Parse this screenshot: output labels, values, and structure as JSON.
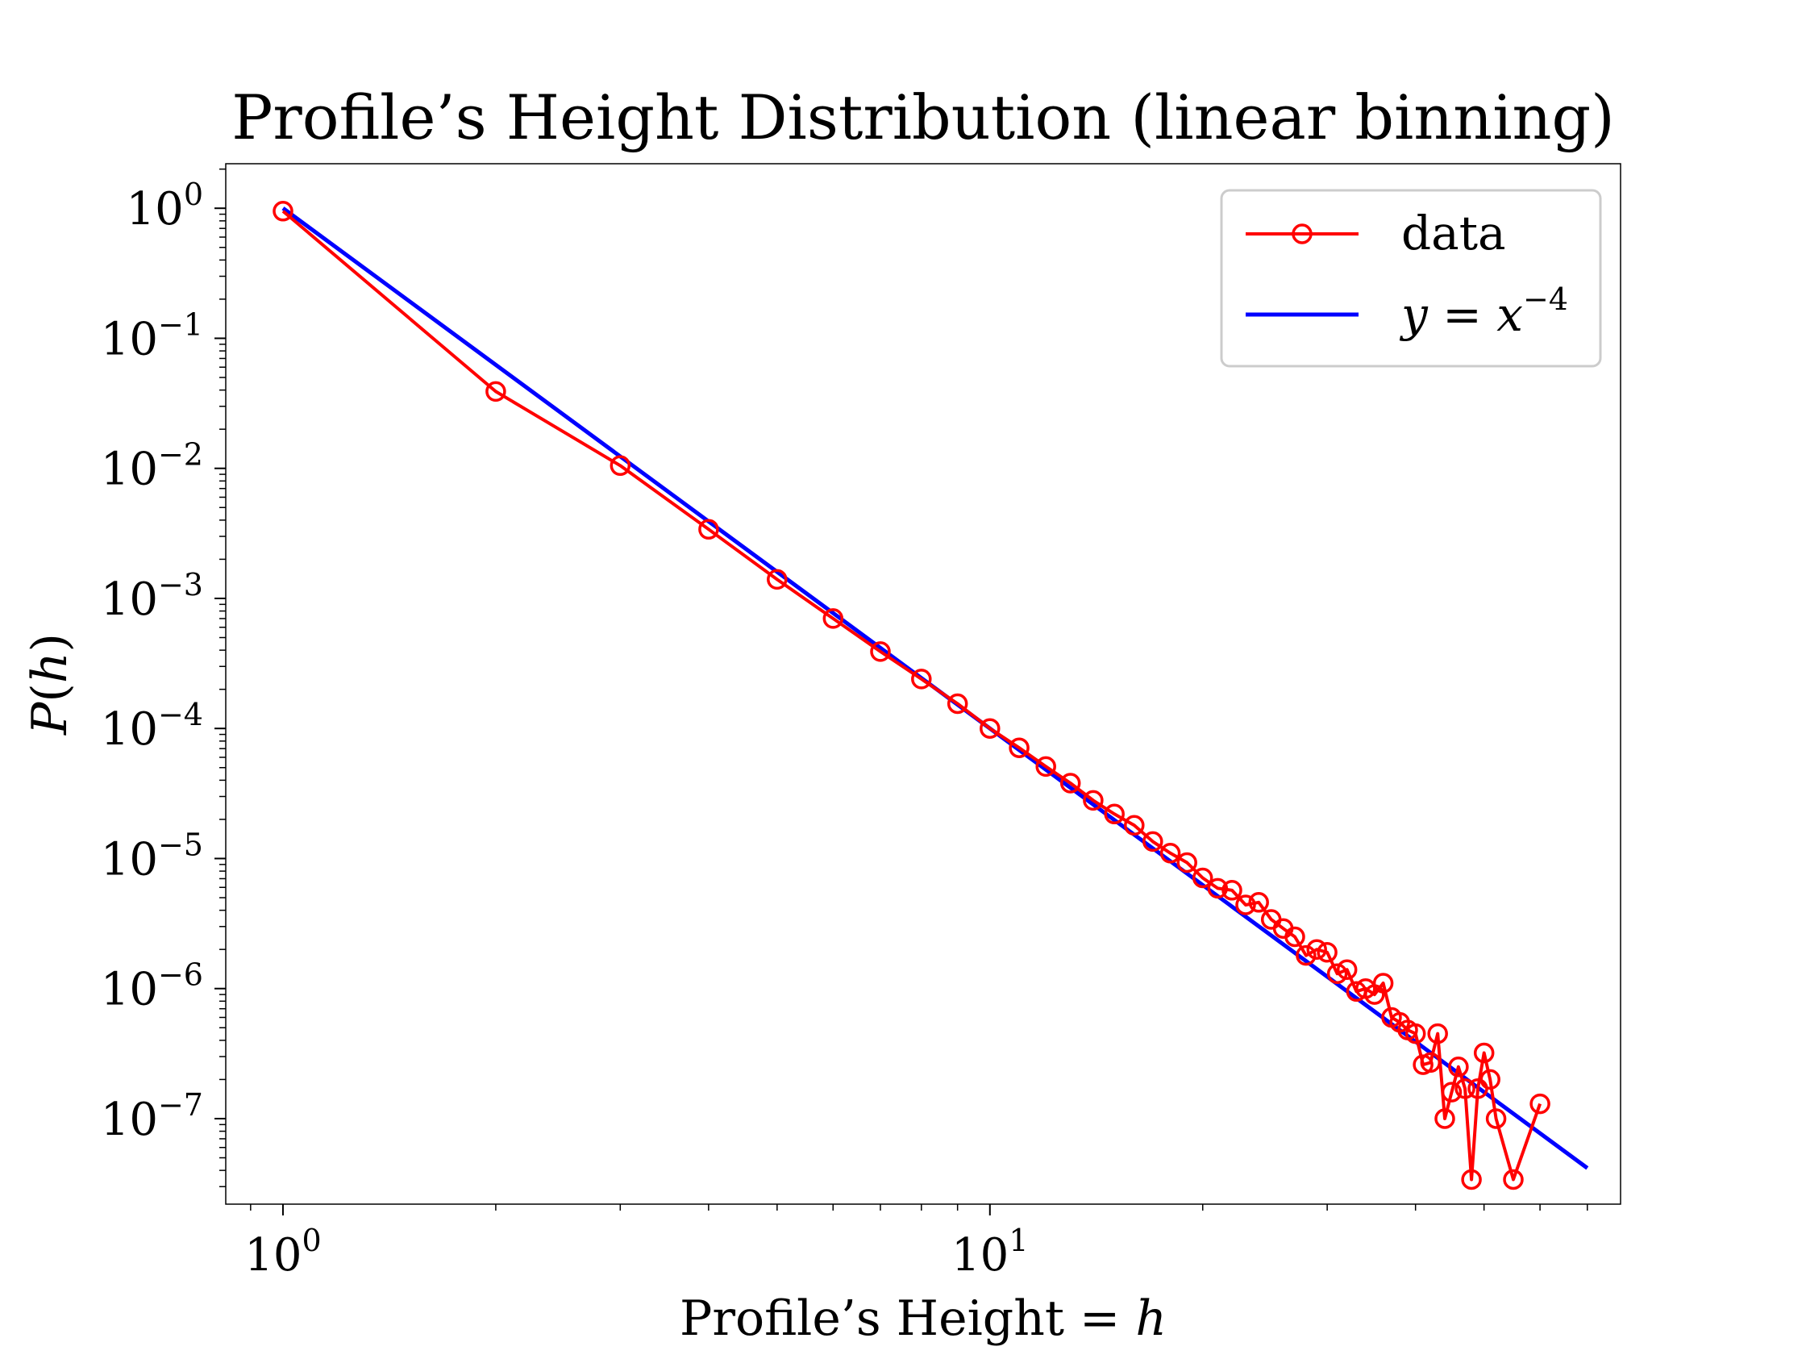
{
  "chart_data": {
    "type": "line",
    "title": "Profile’s Height Distribution (linear binning)",
    "xlabel": {
      "prefix": "Profile’s Height = ",
      "variable": "h"
    },
    "ylabel": {
      "func": "P",
      "variable": "h"
    },
    "x_scale": "log",
    "y_scale": "log",
    "xlim": [
      0.83,
      78
    ],
    "ylim": [
      2.2e-08,
      2.2
    ],
    "x_tick_labels": [
      {
        "value": 1,
        "base": "10",
        "exp": "0"
      },
      {
        "value": 10,
        "base": "10",
        "exp": "1"
      }
    ],
    "y_tick_labels": [
      {
        "value": 1,
        "base": "10",
        "exp": "0"
      },
      {
        "value": 0.1,
        "base": "10",
        "exp": "−1"
      },
      {
        "value": 0.01,
        "base": "10",
        "exp": "−2"
      },
      {
        "value": 0.001,
        "base": "10",
        "exp": "−3"
      },
      {
        "value": 0.0001,
        "base": "10",
        "exp": "−4"
      },
      {
        "value": 1e-05,
        "base": "10",
        "exp": "−5"
      },
      {
        "value": 1e-06,
        "base": "10",
        "exp": "−6"
      },
      {
        "value": 1e-07,
        "base": "10",
        "exp": "−7"
      }
    ],
    "grid": false,
    "legend_position": "top-right",
    "series": [
      {
        "name": "data",
        "color": "#ff0000",
        "marker": "open-circle",
        "x": [
          1,
          2,
          3,
          4,
          5,
          6,
          7,
          8,
          9,
          10,
          11,
          12,
          13,
          14,
          15,
          16,
          17,
          18,
          19,
          20,
          21,
          22,
          23,
          24,
          25,
          26,
          27,
          28,
          29,
          30,
          31,
          32,
          33,
          34,
          35,
          36,
          37,
          38,
          39,
          40,
          41,
          42,
          43,
          44,
          45,
          46,
          47,
          48,
          49,
          50,
          51,
          52,
          55,
          60
        ],
        "y": [
          0.95,
          0.039,
          0.0105,
          0.0034,
          0.0014,
          0.0007,
          0.00039,
          0.00024,
          0.000155,
          0.0001,
          7.1e-05,
          5.1e-05,
          3.8e-05,
          2.8e-05,
          2.2e-05,
          1.8e-05,
          1.35e-05,
          1.1e-05,
          9.3e-06,
          7.1e-06,
          5.9e-06,
          5.7e-06,
          4.4e-06,
          4.6e-06,
          3.4e-06,
          2.9e-06,
          2.5e-06,
          1.8e-06,
          2e-06,
          1.9e-06,
          1.3e-06,
          1.4e-06,
          9.5e-07,
          1e-06,
          9e-07,
          1.1e-06,
          6e-07,
          5.5e-07,
          4.8e-07,
          4.5e-07,
          2.6e-07,
          2.7e-07,
          4.5e-07,
          1e-07,
          1.6e-07,
          2.5e-07,
          1.7e-07,
          3.4e-08,
          1.7e-07,
          3.2e-07,
          2e-07,
          1e-07,
          3.4e-08,
          1.3e-07
        ]
      },
      {
        "name": "y = x^−4",
        "color": "#0000ff",
        "marker": "none",
        "x": [
          1,
          70
        ],
        "y": [
          1,
          4.165e-08
        ]
      }
    ],
    "legend": [
      {
        "label": "data",
        "color": "#ff0000",
        "marker": "open-circle"
      },
      {
        "label_parts": {
          "lhs": "y",
          "eq": " = ",
          "base": "x",
          "exp": "−4"
        },
        "color": "#0000ff",
        "marker": "none"
      }
    ]
  }
}
